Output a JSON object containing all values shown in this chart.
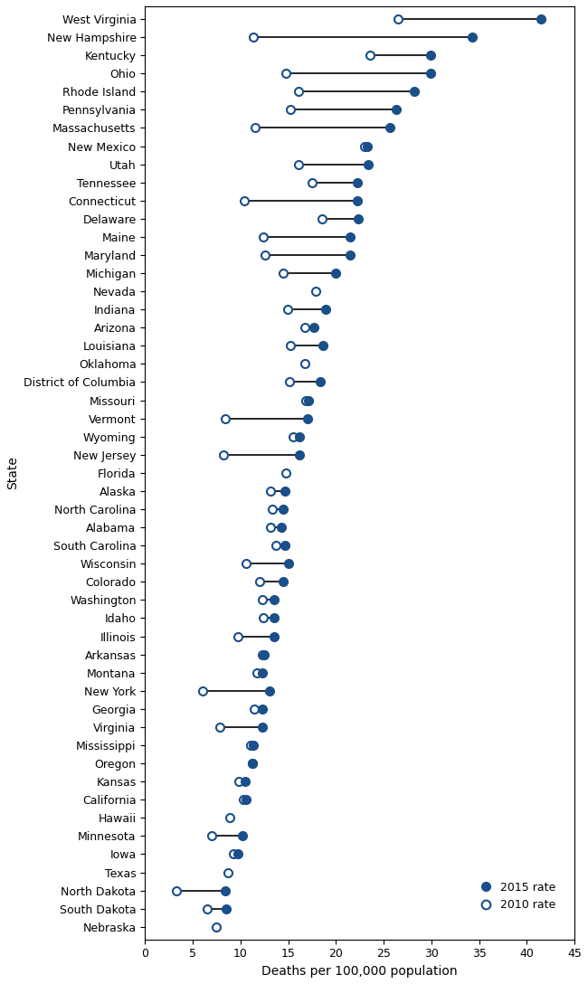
{
  "states": [
    "West Virginia",
    "New Hampshire",
    "Kentucky",
    "Ohio",
    "Rhode Island",
    "Pennsylvania",
    "Massachusetts",
    "New Mexico",
    "Utah",
    "Tennessee",
    "Connecticut",
    "Delaware",
    "Maine",
    "Maryland",
    "Michigan",
    "Nevada",
    "Indiana",
    "Arizona",
    "Louisiana",
    "Oklahoma",
    "District of Columbia",
    "Missouri",
    "Vermont",
    "Wyoming",
    "New Jersey",
    "Florida",
    "Alaska",
    "North Carolina",
    "Alabama",
    "South Carolina",
    "Wisconsin",
    "Colorado",
    "Washington",
    "Idaho",
    "Illinois",
    "Arkansas",
    "Montana",
    "New York",
    "Georgia",
    "Virginia",
    "Mississippi",
    "Oregon",
    "Kansas",
    "California",
    "Hawaii",
    "Minnesota",
    "Iowa",
    "Texas",
    "North Dakota",
    "South Dakota",
    "Nebraska"
  ],
  "rate_2015": [
    41.5,
    34.3,
    29.9,
    29.9,
    28.2,
    26.3,
    25.7,
    23.3,
    23.4,
    22.2,
    22.2,
    22.3,
    21.5,
    21.5,
    20.0,
    null,
    18.9,
    17.7,
    18.6,
    null,
    18.4,
    17.1,
    17.0,
    16.2,
    16.2,
    null,
    14.7,
    14.5,
    14.3,
    14.7,
    15.0,
    14.5,
    13.5,
    13.5,
    13.5,
    12.5,
    12.3,
    13.0,
    12.3,
    12.3,
    11.3,
    11.2,
    10.5,
    10.6,
    null,
    10.2,
    9.7,
    null,
    8.4,
    8.5,
    null
  ],
  "rate_2010": [
    26.5,
    11.3,
    23.6,
    14.8,
    16.1,
    15.2,
    11.5,
    23.0,
    16.1,
    17.5,
    10.4,
    18.5,
    12.4,
    12.6,
    14.5,
    17.9,
    14.9,
    16.7,
    15.2,
    16.7,
    15.1,
    16.8,
    8.4,
    15.5,
    8.2,
    14.8,
    13.1,
    13.3,
    13.1,
    13.7,
    10.6,
    12.0,
    12.3,
    12.4,
    9.7,
    12.3,
    11.7,
    6.0,
    11.4,
    7.8,
    11.1,
    11.2,
    9.8,
    10.3,
    8.9,
    7.0,
    9.3,
    8.7,
    3.3,
    6.5,
    7.5
  ],
  "dot_color": "#1a4f8a",
  "line_color": "black",
  "xlabel": "Deaths per 100,000 population",
  "ylabel": "State",
  "xlim": [
    0,
    45
  ],
  "xticks": [
    0,
    5,
    10,
    15,
    20,
    25,
    30,
    35,
    40,
    45
  ],
  "axis_fontsize": 10,
  "tick_fontsize": 9,
  "legend_fontsize": 9
}
